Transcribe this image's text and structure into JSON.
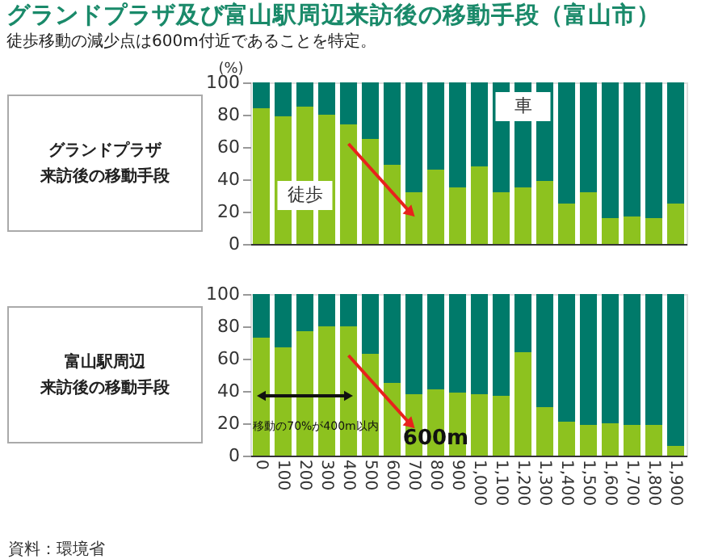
{
  "chart_data": [
    {
      "type": "bar",
      "title": "グランドプラザ及び富山駅周辺来訪後の移動手段（富山市）",
      "subtitle": "徒歩移動の減少点は600m付近であることを特定。",
      "ylabel": "(%)",
      "categories": [
        "0",
        "100",
        "200",
        "300",
        "400",
        "500",
        "600",
        "700",
        "800",
        "900",
        "1,000",
        "1,100",
        "1,200",
        "1,300",
        "1,400",
        "1,500",
        "1,600",
        "1,700",
        "1,800",
        "1,900"
      ],
      "stacked": true,
      "ylim": [
        0,
        100
      ],
      "yticks": [
        0,
        20,
        40,
        60,
        80,
        100
      ],
      "grid": false,
      "legend": false,
      "tick_labels": "y",
      "series": [
        {
          "name": "徒歩",
          "color": "#8dc21f",
          "values": [
            84,
            79,
            85,
            80,
            74,
            65,
            49,
            32,
            46,
            35,
            48,
            32,
            35,
            39,
            25,
            32,
            16,
            17,
            16,
            25
          ]
        },
        {
          "name": "車",
          "color": "#007a6a",
          "values": [
            16,
            21,
            15,
            20,
            26,
            35,
            51,
            68,
            54,
            65,
            52,
            68,
            65,
            61,
            75,
            68,
            84,
            83,
            84,
            75
          ]
        }
      ],
      "annotations": [
        "グランドプラザ",
        "来訪後の移動手段"
      ]
    },
    {
      "type": "bar",
      "categories": [
        "0",
        "100",
        "200",
        "300",
        "400",
        "500",
        "600",
        "700",
        "800",
        "900",
        "1,000",
        "1,100",
        "1,200",
        "1,300",
        "1,400",
        "1,500",
        "1,600",
        "1,700",
        "1,800",
        "1,900"
      ],
      "stacked": true,
      "ylim": [
        0,
        100
      ],
      "yticks": [
        0,
        20,
        40,
        60,
        80,
        100
      ],
      "grid": false,
      "legend": false,
      "series": [
        {
          "color": "#8dc21f",
          "values": [
            73,
            67,
            77,
            80,
            80,
            63,
            45,
            38,
            41,
            39,
            38,
            37,
            64,
            30,
            21,
            19,
            20,
            19,
            19,
            6
          ]
        },
        {
          "color": "#007a6a",
          "values": [
            27,
            33,
            23,
            20,
            20,
            37,
            55,
            62,
            59,
            61,
            62,
            63,
            36,
            70,
            79,
            81,
            80,
            81,
            81,
            94
          ]
        }
      ],
      "annotations": [
        "富山駅周辺",
        "来訪後の移動手段",
        "移動の70%が400m以内",
        {
          "text": "600m",
          "x": "800",
          "y": 4
        },
        "資料：環境省"
      ]
    }
  ]
}
